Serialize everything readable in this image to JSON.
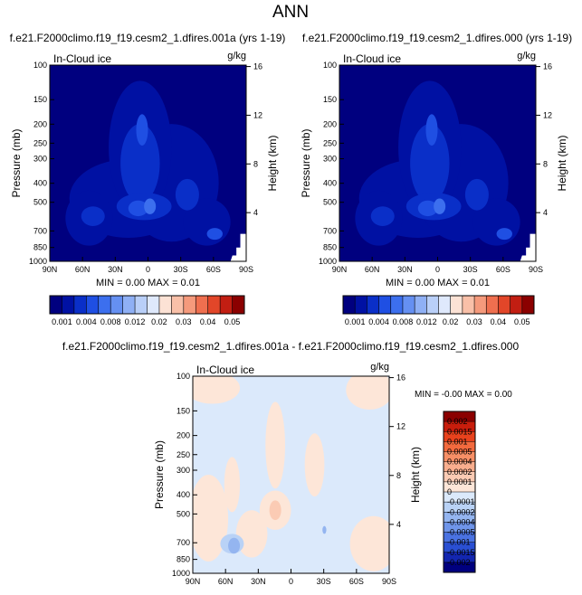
{
  "figure": {
    "title": "ANN"
  },
  "chart_data": [
    {
      "type": "heatmap",
      "title": "f.e21.F2000climo.f19_f19.cesm2_1.dfires.001a (yrs 1-19)",
      "variable": "In-Cloud ice",
      "units": "g/kg",
      "ylabel": "Pressure (mb)",
      "ylabel_right": "Height (km)",
      "x_ticks": [
        "90N",
        "60N",
        "30N",
        "0",
        "30S",
        "60S",
        "90S"
      ],
      "y_ticks": [
        "100",
        "150",
        "200",
        "250",
        "300",
        "400",
        "500",
        "700",
        "850",
        "1000"
      ],
      "y_right_ticks": [
        "16",
        "12",
        "8",
        "4"
      ],
      "ylim": [
        100,
        1000
      ],
      "y_scale": "log",
      "min_label": "MIN =",
      "min_value": "0.00",
      "max_label": "MAX =",
      "max_value": "0.01",
      "levels": [
        "0.001",
        "0.004",
        "0.008",
        "0.012",
        "0.02",
        "0.03",
        "0.04",
        "0.05"
      ],
      "colormap": [
        "#00007f",
        "#0011a3",
        "#0a2fc8",
        "#1f4fe3",
        "#3c6fee",
        "#6590f2",
        "#8fb0f5",
        "#b9cff8",
        "#dfe9fc",
        "#fce2d5",
        "#f9c0a8",
        "#f59a7c",
        "#ef6f4f",
        "#e24629",
        "#c21e12",
        "#8b0000"
      ],
      "colorbar_orientation": "horizontal"
    },
    {
      "type": "heatmap",
      "title": "f.e21.F2000climo.f19_f19.cesm2_1.dfires.000 (yrs 1-19)",
      "variable": "In-Cloud ice",
      "units": "g/kg",
      "ylabel": "Pressure (mb)",
      "ylabel_right": "Height (km)",
      "x_ticks": [
        "90N",
        "60N",
        "30N",
        "0",
        "30S",
        "60S",
        "90S"
      ],
      "y_ticks": [
        "100",
        "150",
        "200",
        "250",
        "300",
        "400",
        "500",
        "700",
        "850",
        "1000"
      ],
      "y_right_ticks": [
        "16",
        "12",
        "8",
        "4"
      ],
      "ylim": [
        100,
        1000
      ],
      "y_scale": "log",
      "min_label": "MIN =",
      "min_value": "0.00",
      "max_label": "MAX =",
      "max_value": "0.01",
      "levels": [
        "0.001",
        "0.004",
        "0.008",
        "0.012",
        "0.02",
        "0.03",
        "0.04",
        "0.05"
      ],
      "colormap": [
        "#00007f",
        "#0011a3",
        "#0a2fc8",
        "#1f4fe3",
        "#3c6fee",
        "#6590f2",
        "#8fb0f5",
        "#b9cff8",
        "#dfe9fc",
        "#fce2d5",
        "#f9c0a8",
        "#f59a7c",
        "#ef6f4f",
        "#e24629",
        "#c21e12",
        "#8b0000"
      ],
      "colorbar_orientation": "horizontal"
    },
    {
      "type": "heatmap",
      "title": "f.e21.F2000climo.f19_f19.cesm2_1.dfires.001a - f.e21.F2000climo.f19_f19.cesm2_1.dfires.000",
      "variable": "In-Cloud ice",
      "units": "g/kg",
      "ylabel": "Pressure (mb)",
      "ylabel_right": "Height (km)",
      "x_ticks": [
        "90N",
        "60N",
        "30N",
        "0",
        "30S",
        "60S",
        "90S"
      ],
      "y_ticks": [
        "100",
        "150",
        "200",
        "250",
        "300",
        "400",
        "500",
        "700",
        "850",
        "1000"
      ],
      "y_right_ticks": [
        "16",
        "12",
        "8",
        "4"
      ],
      "ylim": [
        100,
        1000
      ],
      "y_scale": "log",
      "min_label": "MIN =",
      "min_value": "-0.00",
      "max_label": "MAX =",
      "max_value": "0.00",
      "levels": [
        "0.002",
        "0.0015",
        "0.001",
        "0.0005",
        "0.0004",
        "0.0002",
        "0.0001",
        "0",
        "-0.0001",
        "-0.0002",
        "-0.0004",
        "-0.0005",
        "-0.001",
        "-0.0015",
        "-0.002"
      ],
      "colormap": [
        "#8b0000",
        "#c81d0c",
        "#e8421d",
        "#f36a3e",
        "#f78f66",
        "#f9ae8e",
        "#fbcbb4",
        "#fde6d8",
        "#dbe9fb",
        "#b9d2f6",
        "#94b5f0",
        "#6f95ea",
        "#4a72e2",
        "#2a4fd3",
        "#1326b0",
        "#00007f"
      ],
      "colorbar_orientation": "vertical"
    }
  ]
}
